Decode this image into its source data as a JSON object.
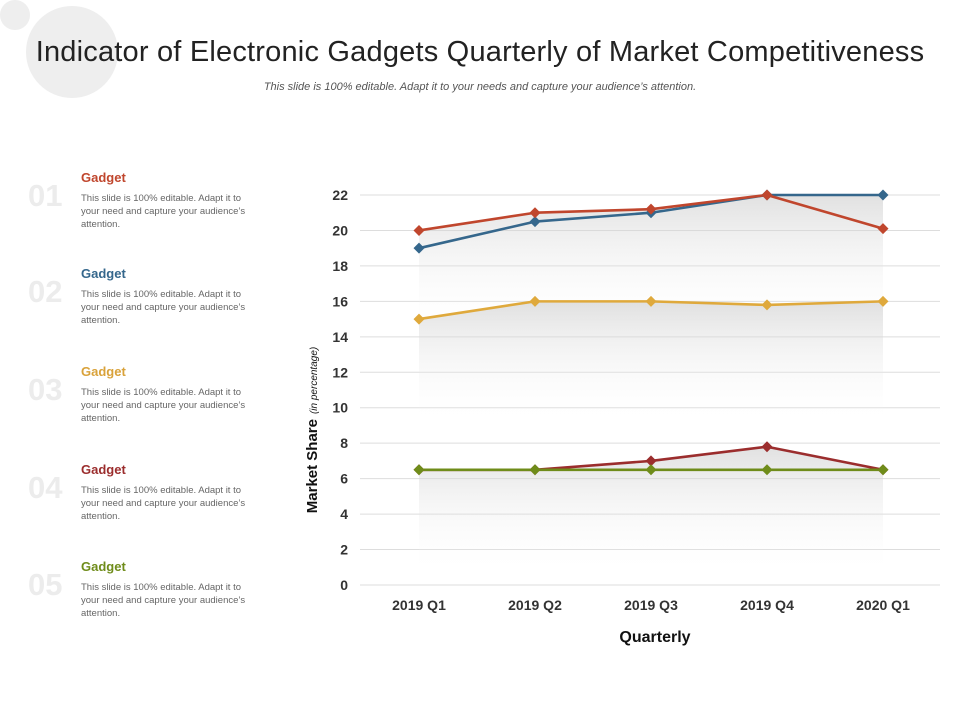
{
  "title": "Indicator of Electronic Gadgets Quarterly of Market Competitiveness",
  "subtitle": "This slide is 100% editable. Adapt it to your needs and capture your audience’s attention.",
  "legend": [
    {
      "number": "01",
      "heading": "Gadget",
      "text": "This slide is 100% editable. Adapt it to your need and capture your audience’s attention.",
      "color": "#c0462d"
    },
    {
      "number": "02",
      "heading": "Gadget",
      "text": "This slide is 100% editable. Adapt it to your need and capture your audience’s attention.",
      "color": "#35678c"
    },
    {
      "number": "03",
      "heading": "Gadget",
      "text": "This slide is 100% editable. Adapt it to your need and capture your audience’s attention.",
      "color": "#d9a23a"
    },
    {
      "number": "04",
      "heading": "Gadget",
      "text": "This slide is 100% editable. Adapt it to your need and capture your audience’s attention.",
      "color": "#9b2d2d"
    },
    {
      "number": "05",
      "heading": "Gadget",
      "text": "This slide is 100% editable. Adapt it to your need and capture your audience’s attention.",
      "color": "#6f8c1a"
    }
  ],
  "chart_data": {
    "type": "line",
    "categories": [
      "2019 Q1",
      "2019 Q2",
      "2019 Q3",
      "2019 Q4",
      "2020 Q1"
    ],
    "series": [
      {
        "name": "Gadget 01",
        "color": "#c0462d",
        "values": [
          20,
          21,
          21.2,
          22,
          20.1
        ]
      },
      {
        "name": "Gadget 02",
        "color": "#35678c",
        "values": [
          19,
          20.5,
          21,
          22,
          22
        ]
      },
      {
        "name": "Gadget 03",
        "color": "#dfa93c",
        "values": [
          15,
          16,
          16,
          15.8,
          16
        ]
      },
      {
        "name": "Gadget 04",
        "color": "#9b2d2d",
        "values": [
          6.5,
          6.5,
          7,
          7.8,
          6.5
        ]
      },
      {
        "name": "Gadget 05",
        "color": "#6f8c1a",
        "values": [
          6.5,
          6.5,
          6.5,
          6.5,
          6.5
        ]
      }
    ],
    "yticks": [
      0,
      2,
      4,
      6,
      8,
      10,
      12,
      14,
      16,
      18,
      20,
      22
    ],
    "ylim": [
      0,
      22
    ],
    "xlabel": "Quarterly",
    "ylabel": "Market Share",
    "ylabel_note": "(in percentage)",
    "grid": true
  }
}
